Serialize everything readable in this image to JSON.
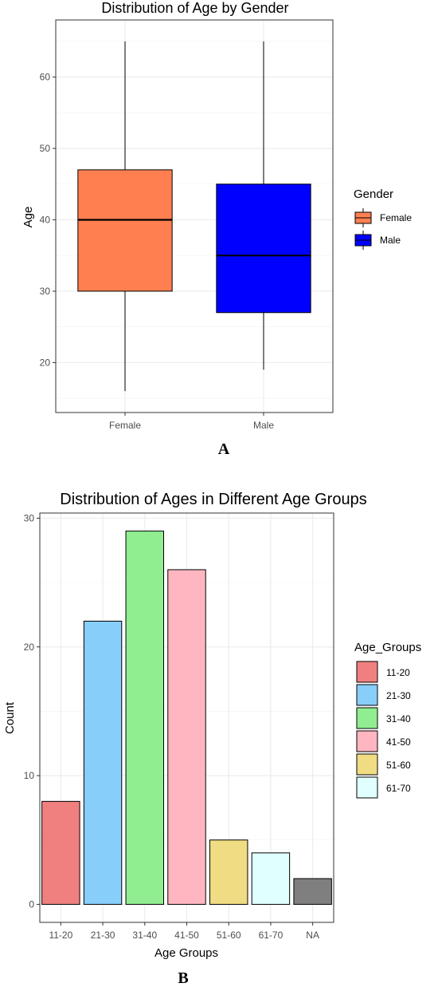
{
  "chart_data": [
    {
      "type": "box",
      "title": "Distribution of Age by Gender",
      "xlabel": "",
      "ylabel": "Age",
      "ylim": [
        13,
        68
      ],
      "yticks": [
        20,
        30,
        40,
        50,
        60
      ],
      "categories": [
        "Female",
        "Male"
      ],
      "boxes": [
        {
          "name": "Female",
          "min": 16,
          "q1": 30,
          "median": 40,
          "q3": 47,
          "max": 65,
          "color": "#FF7F50"
        },
        {
          "name": "Male",
          "min": 19,
          "q1": 27,
          "median": 35,
          "q3": 45,
          "max": 65,
          "color": "#0000FF"
        }
      ],
      "legend": {
        "title": "Gender",
        "position": "right",
        "entries": [
          "Female",
          "Male"
        ]
      },
      "grid": true,
      "panel_label": "A"
    },
    {
      "type": "bar",
      "title": "Distribution of Ages in Different Age Groups",
      "xlabel": "Age Groups",
      "ylabel": "Count",
      "ylim": [
        -1.4,
        30.4
      ],
      "yticks": [
        0,
        10,
        20,
        30
      ],
      "categories": [
        "11-20",
        "21-30",
        "31-40",
        "41-50",
        "51-60",
        "61-70",
        "NA"
      ],
      "values": [
        8,
        22,
        29,
        26,
        5,
        4,
        2
      ],
      "colors": [
        "#F08080",
        "#87CEFA",
        "#90EE90",
        "#FFB6C1",
        "#F0DC82",
        "#E0FFFF",
        "#7F7F7F"
      ],
      "legend": {
        "title": "Age_Groups",
        "position": "right",
        "entries": [
          "11-20",
          "21-30",
          "31-40",
          "41-50",
          "51-60",
          "61-70"
        ]
      },
      "grid": true,
      "panel_label": "B"
    }
  ]
}
